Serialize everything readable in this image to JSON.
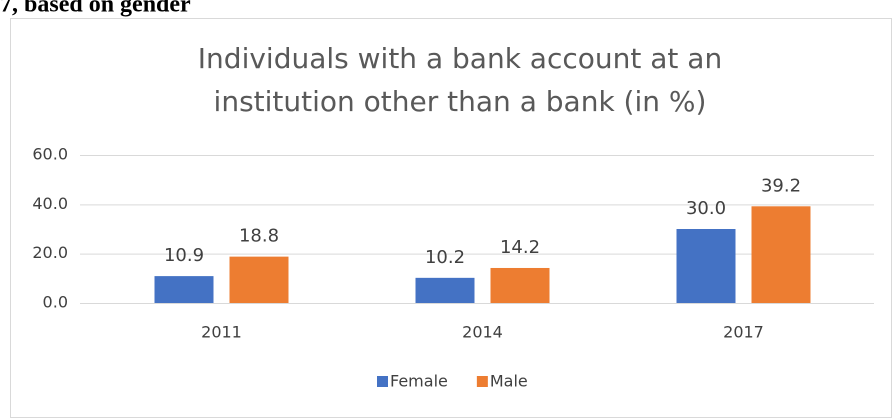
{
  "caption": "7, based on gender",
  "chart_data": {
    "type": "bar",
    "title": [
      "Individuals with a bank account at an",
      "institution other than a bank (in %)"
    ],
    "categories": [
      "2011",
      "2014",
      "2017"
    ],
    "series": [
      {
        "name": "Female",
        "color": "#4472c4",
        "values": [
          10.9,
          10.2,
          30.0
        ],
        "value_labels": [
          "10.9",
          "10.2",
          "30.0"
        ]
      },
      {
        "name": "Male",
        "color": "#ed7d31",
        "values": [
          18.8,
          14.2,
          39.2
        ],
        "value_labels": [
          "18.8",
          "14.2",
          "39.2"
        ]
      }
    ],
    "ylim": [
      0,
      60
    ],
    "yticks": [
      {
        "value": 0,
        "label": "0.0"
      },
      {
        "value": 20,
        "label": "20.0"
      },
      {
        "value": 40,
        "label": "40.0"
      },
      {
        "value": 60,
        "label": "60.0"
      }
    ],
    "grid": true,
    "legend": "bottom"
  }
}
